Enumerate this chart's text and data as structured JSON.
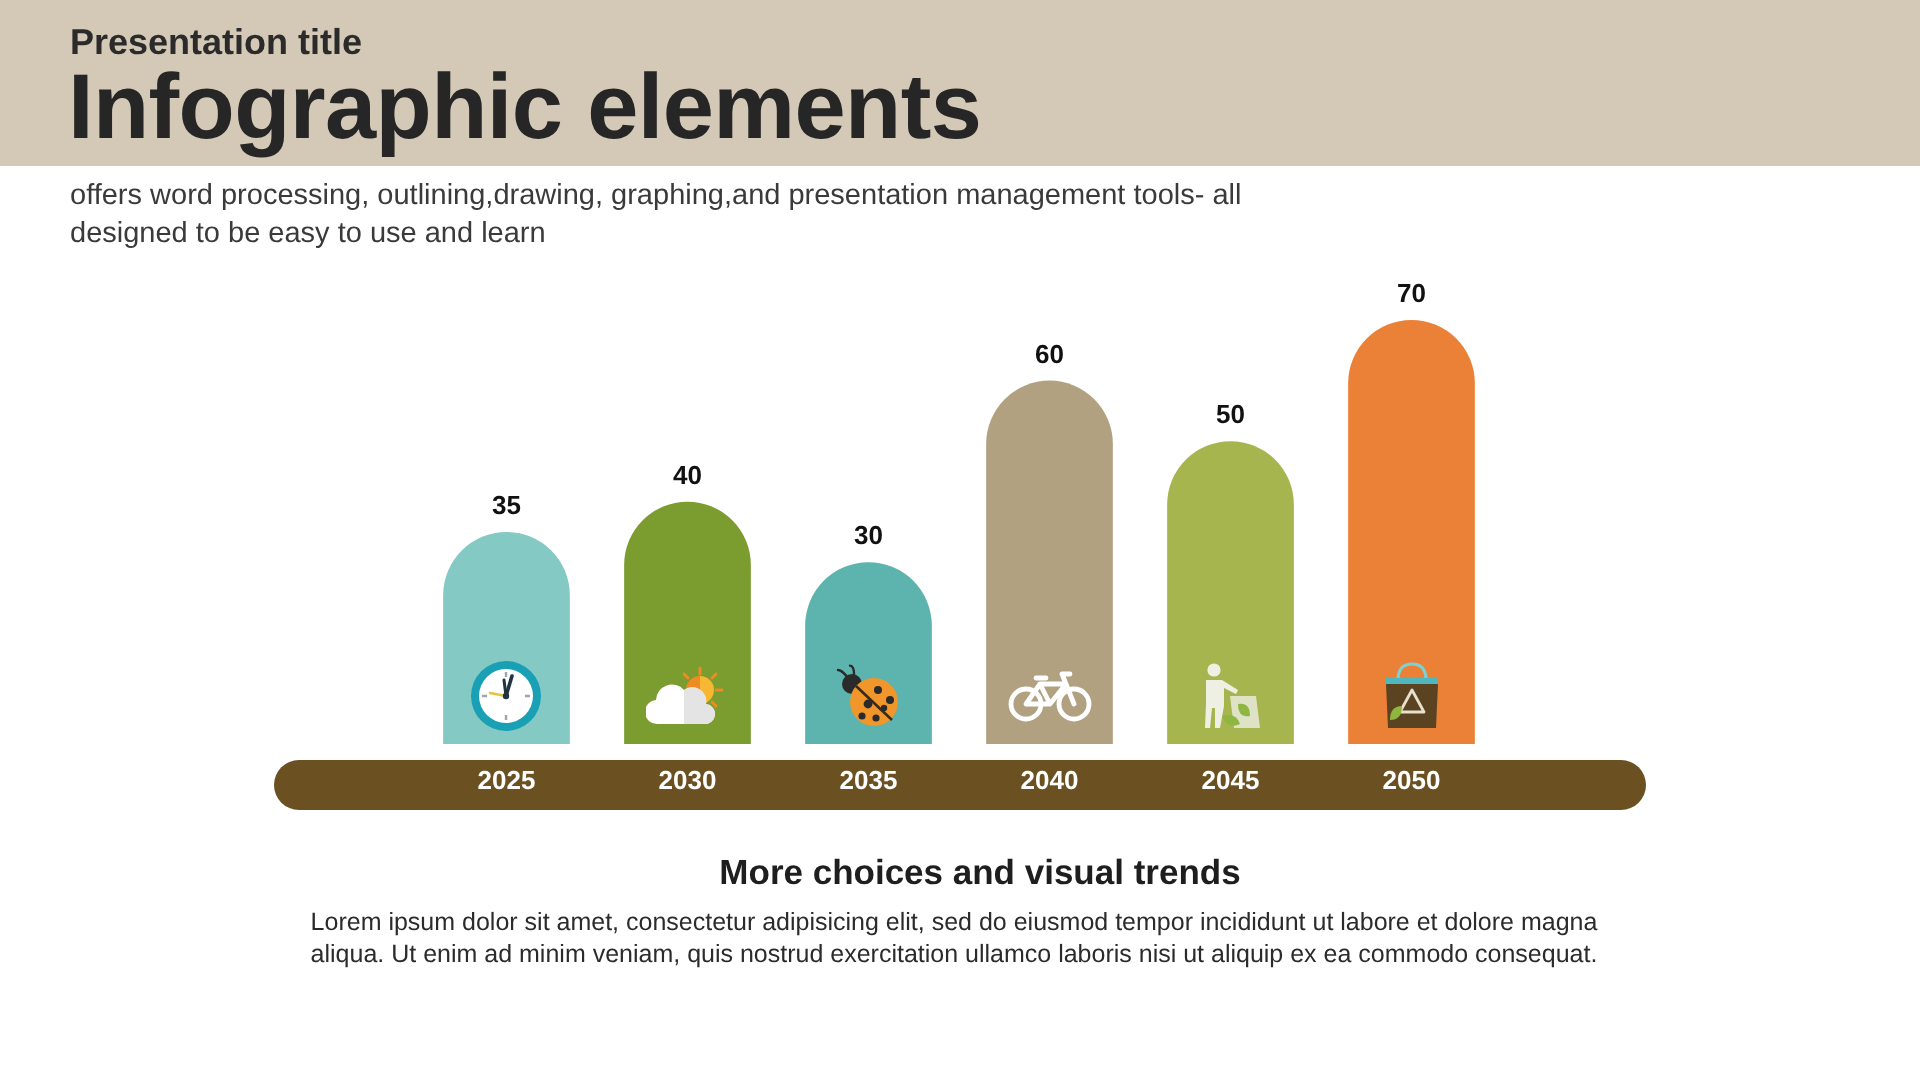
{
  "chart_data": {
    "type": "bar",
    "title": "Infographic elements",
    "subtitle": "offers  word processing, outlining,drawing, graphing,and presentation management tools- all designed to be easy to use and learn",
    "annotations": [
      "Presentation title",
      "More choices and visual trends",
      "Lorem ipsum dolor sit amet, consectetur adipisicing elit, sed do eiusmod tempor incididunt ut labore et dolore magna aliqua. Ut enim ad minim veniam, quis nostrud exercitation ullamco laboris nisi ut aliquip ex ea commodo consequat."
    ],
    "categories": [
      "2025",
      "2030",
      "2035",
      "2040",
      "2045",
      "2050"
    ],
    "values": [
      35,
      40,
      30,
      60,
      50,
      70
    ],
    "colors": [
      "#85c9c5",
      "#7b9c2f",
      "#5db3ae",
      "#b1a181",
      "#a7b54e",
      "#eb8136"
    ],
    "data_labels": true
  }
}
